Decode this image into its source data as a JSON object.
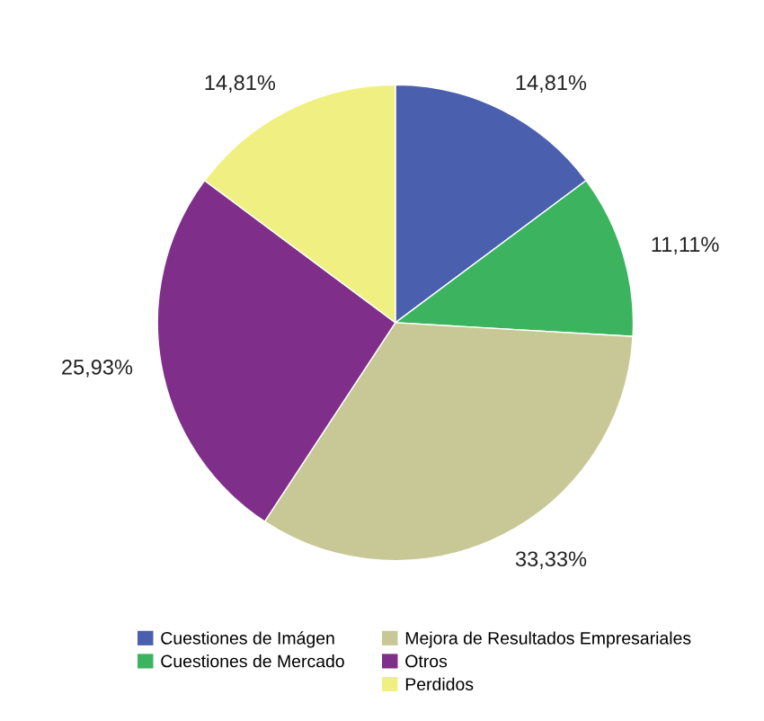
{
  "chart_data": {
    "type": "pie",
    "categories": [
      "Cuestiones de Imágen",
      "Cuestiones de Mercado",
      "Mejora de Resultados Empresariales",
      "Otros",
      "Perdidos"
    ],
    "values": [
      14.81,
      11.11,
      33.33,
      25.93,
      14.81
    ],
    "value_labels": [
      "14,81%",
      "11,11%",
      "33,33%",
      "25,93%",
      "14,81%"
    ],
    "colors": [
      "#4a5fae",
      "#3cb45f",
      "#c8c896",
      "#7f2f8a",
      "#f0f082"
    ],
    "legend": "bottom"
  }
}
